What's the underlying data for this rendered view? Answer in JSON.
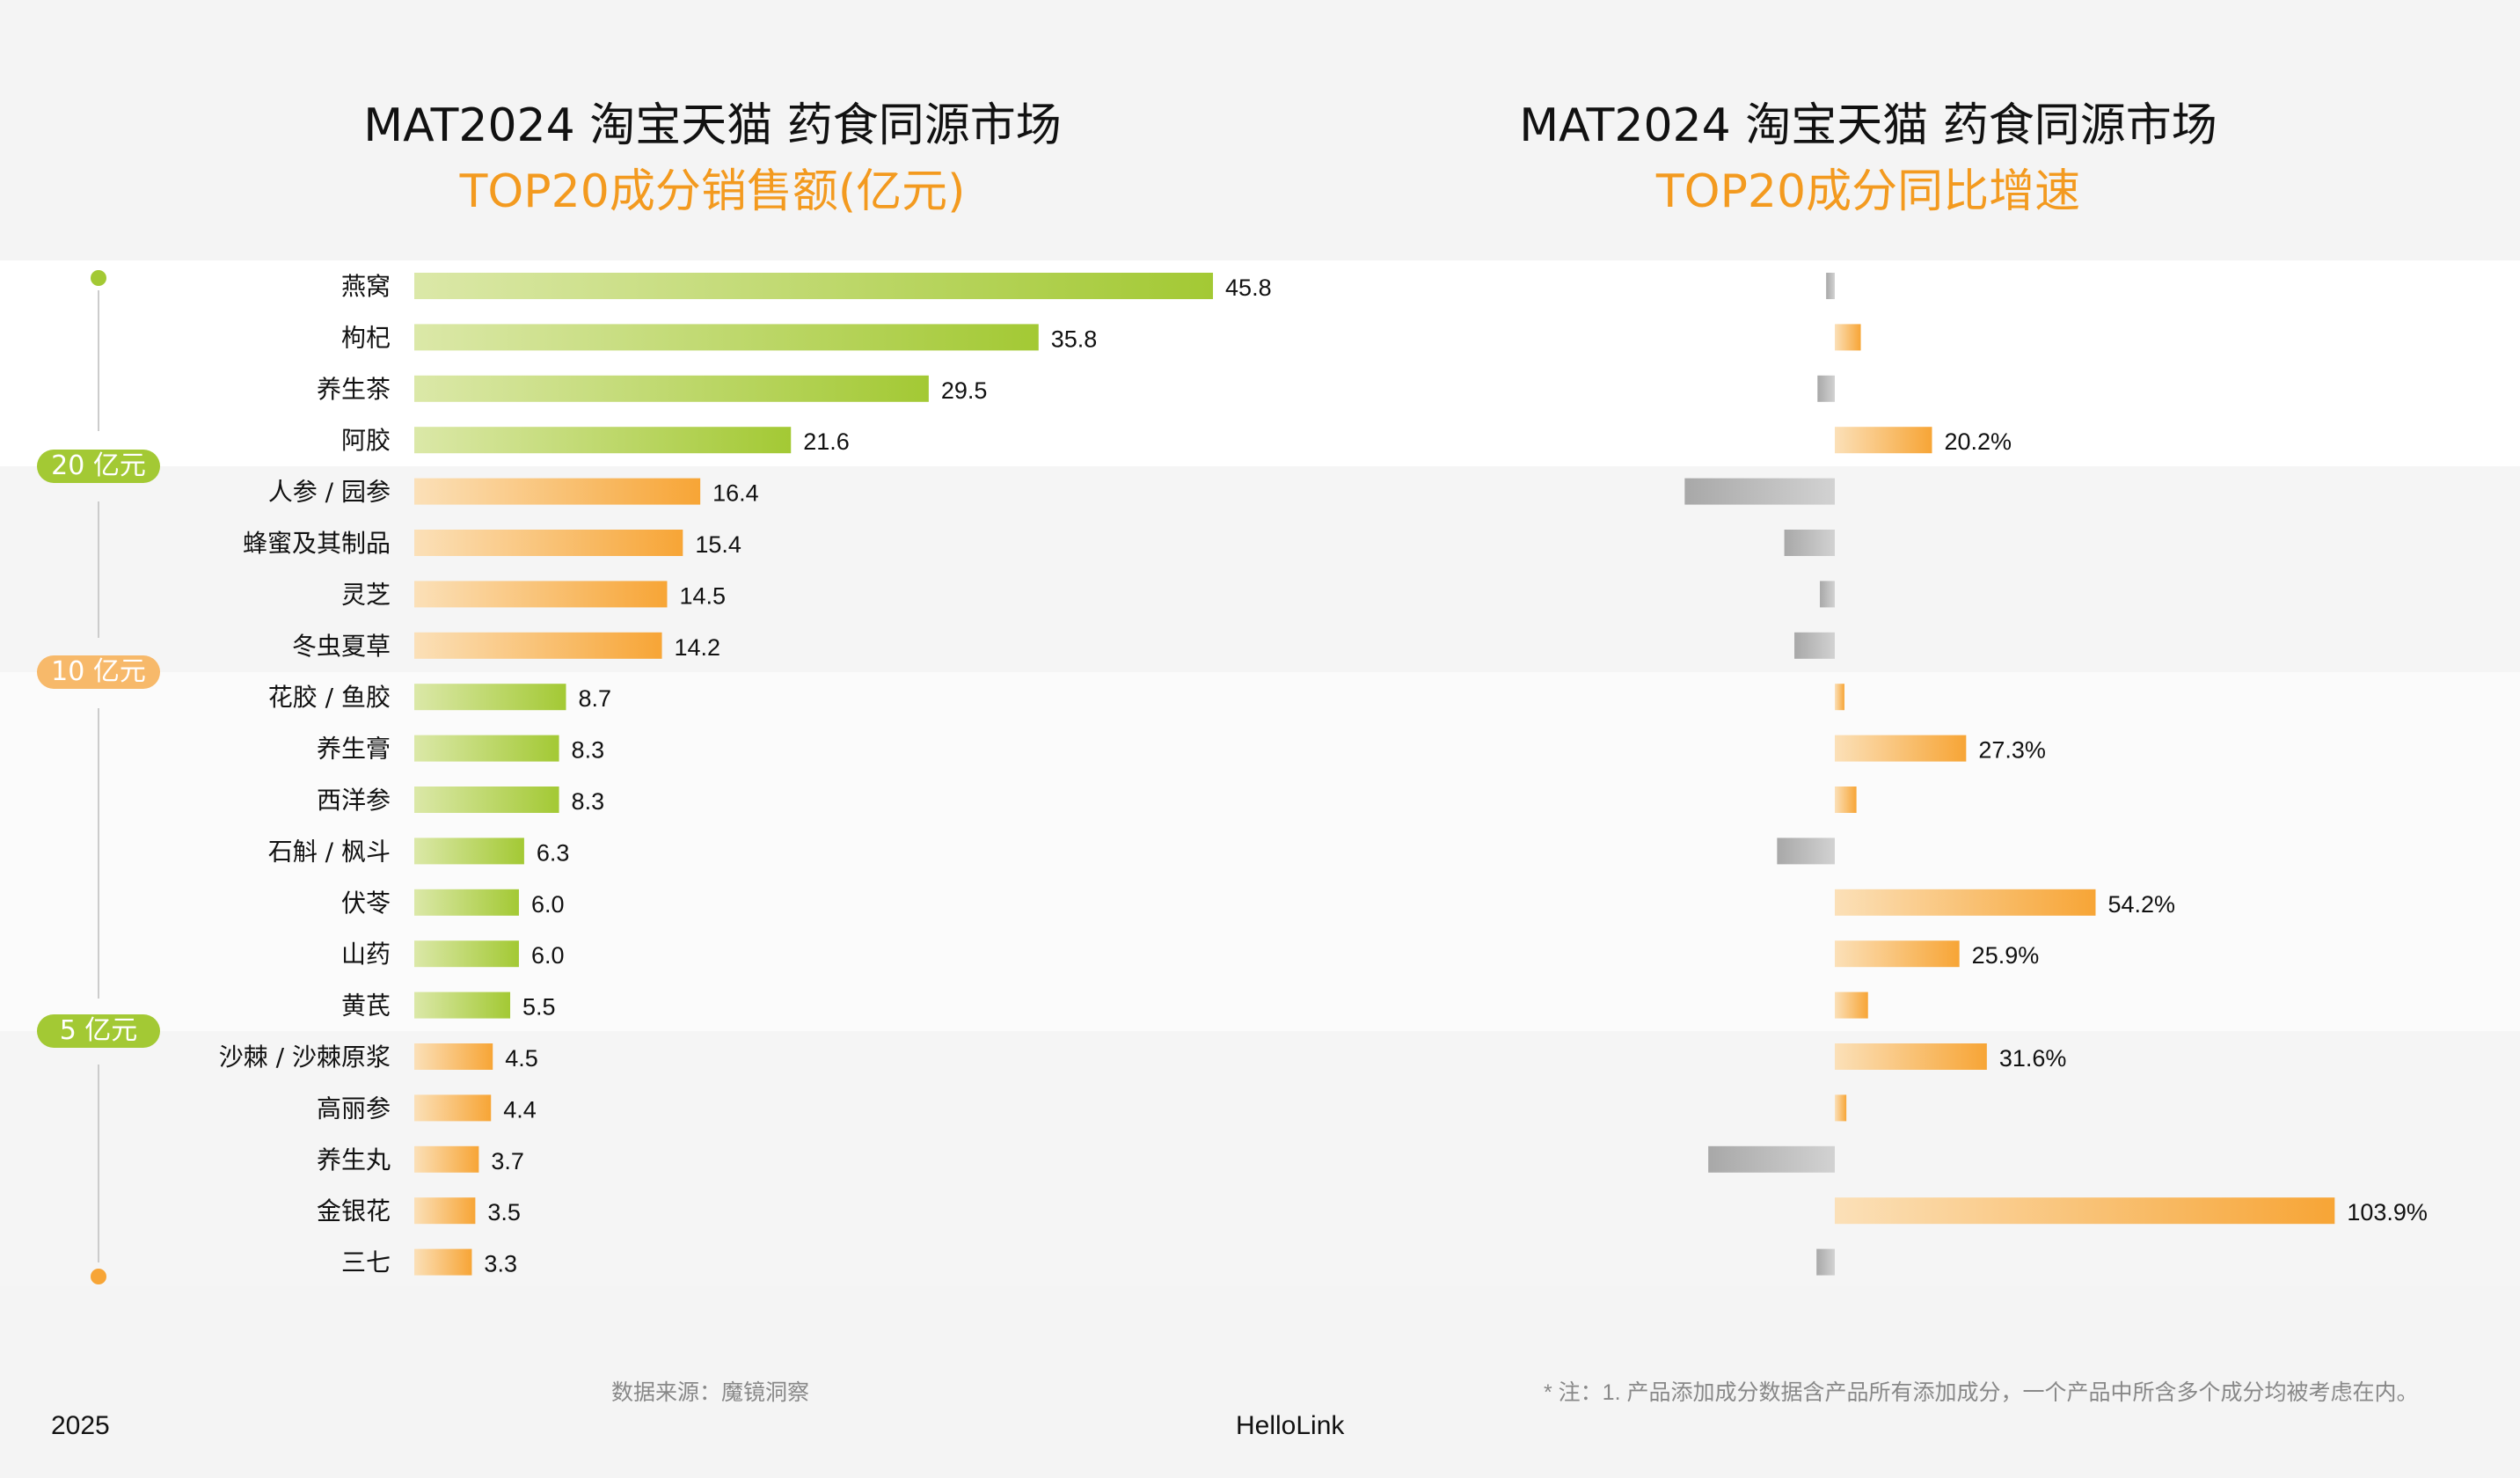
{
  "left_title_line1": "MAT2024 淘宝天猫 药食同源市场",
  "left_title_line2": "TOP20成分销售额(亿元)",
  "right_title_line1": "MAT2024 淘宝天猫 药食同源市场",
  "right_title_line2": "TOP20成分同比增速",
  "tiers": [
    "20 亿元",
    "10 亿元",
    "5 亿元"
  ],
  "colors": {
    "green_start": "#dbe8a8",
    "green_end": "#a3c934",
    "orange_start": "#fbe0b8",
    "orange_end": "#f7a536",
    "gray_start": "#d2d2d2",
    "gray_end": "#a8a8a8",
    "title_accent": "#f39a1f"
  },
  "footer": {
    "source": "数据来源：魔镜洞察",
    "note": "* 注：1. 产品添加成分数据含产品所有添加成分，一个产品中所含多个成分均被考虑在内。",
    "year": "2025",
    "brand": "HelloLink"
  },
  "chart_data": [
    {
      "type": "bar",
      "orientation": "horizontal",
      "title": "TOP20成分销售额(亿元)",
      "categories": [
        "燕窝",
        "枸杞",
        "养生茶",
        "阿胶",
        "人参 / 园参",
        "蜂蜜及其制品",
        "灵芝",
        "冬虫夏草",
        "花胶 / 鱼胶",
        "养生膏",
        "西洋参",
        "石斛 / 枫斗",
        "伏苓",
        "山药",
        "黄芪",
        "沙棘 / 沙棘原浆",
        "高丽参",
        "养生丸",
        "金银花",
        "三七"
      ],
      "values": [
        45.8,
        35.8,
        29.5,
        21.6,
        16.4,
        15.4,
        14.5,
        14.2,
        8.7,
        8.3,
        8.3,
        6.3,
        6.0,
        6.0,
        5.5,
        4.5,
        4.4,
        3.7,
        3.5,
        3.3
      ],
      "value_labels": [
        "45.8",
        "35.8",
        "29.5",
        "21.6",
        "16.4",
        "15.4",
        "14.5",
        "14.2",
        "8.7",
        "8.3",
        "8.3",
        "6.3",
        "6.0",
        "6.0",
        "5.5",
        "4.5",
        "4.4",
        "3.7",
        "3.5",
        "3.3"
      ],
      "bar_colors": [
        "green",
        "green",
        "green",
        "green",
        "orange",
        "orange",
        "orange",
        "orange",
        "green",
        "green",
        "green",
        "green",
        "green",
        "green",
        "green",
        "orange",
        "orange",
        "orange",
        "orange",
        "orange"
      ],
      "xlim": [
        0,
        46
      ]
    },
    {
      "type": "bar",
      "orientation": "horizontal",
      "title": "TOP20成分同比增速",
      "categories": [
        "燕窝",
        "枸杞",
        "养生茶",
        "阿胶",
        "人参 / 园参",
        "蜂蜜及其制品",
        "灵芝",
        "冬虫夏草",
        "花胶 / 鱼胶",
        "养生膏",
        "西洋参",
        "石斛 / 枫斗",
        "伏苓",
        "山药",
        "黄芪",
        "沙棘 / 沙棘原浆",
        "高丽参",
        "养生丸",
        "金银花",
        "三七"
      ],
      "values": [
        -1.8,
        5.4,
        -3.6,
        20.2,
        -31.2,
        -10.5,
        -3.1,
        -8.4,
        2.0,
        27.3,
        4.5,
        -12.0,
        54.2,
        25.9,
        6.9,
        31.6,
        2.4,
        -26.3,
        103.9,
        -3.8
      ],
      "unit": "%",
      "value_labels": [
        "",
        "",
        "",
        "20.2%",
        "",
        "",
        "",
        "",
        "",
        "27.3%",
        "",
        "",
        "54.2%",
        "25.9%",
        "",
        "31.6%",
        "",
        "",
        "103.9%",
        ""
      ]
    }
  ]
}
